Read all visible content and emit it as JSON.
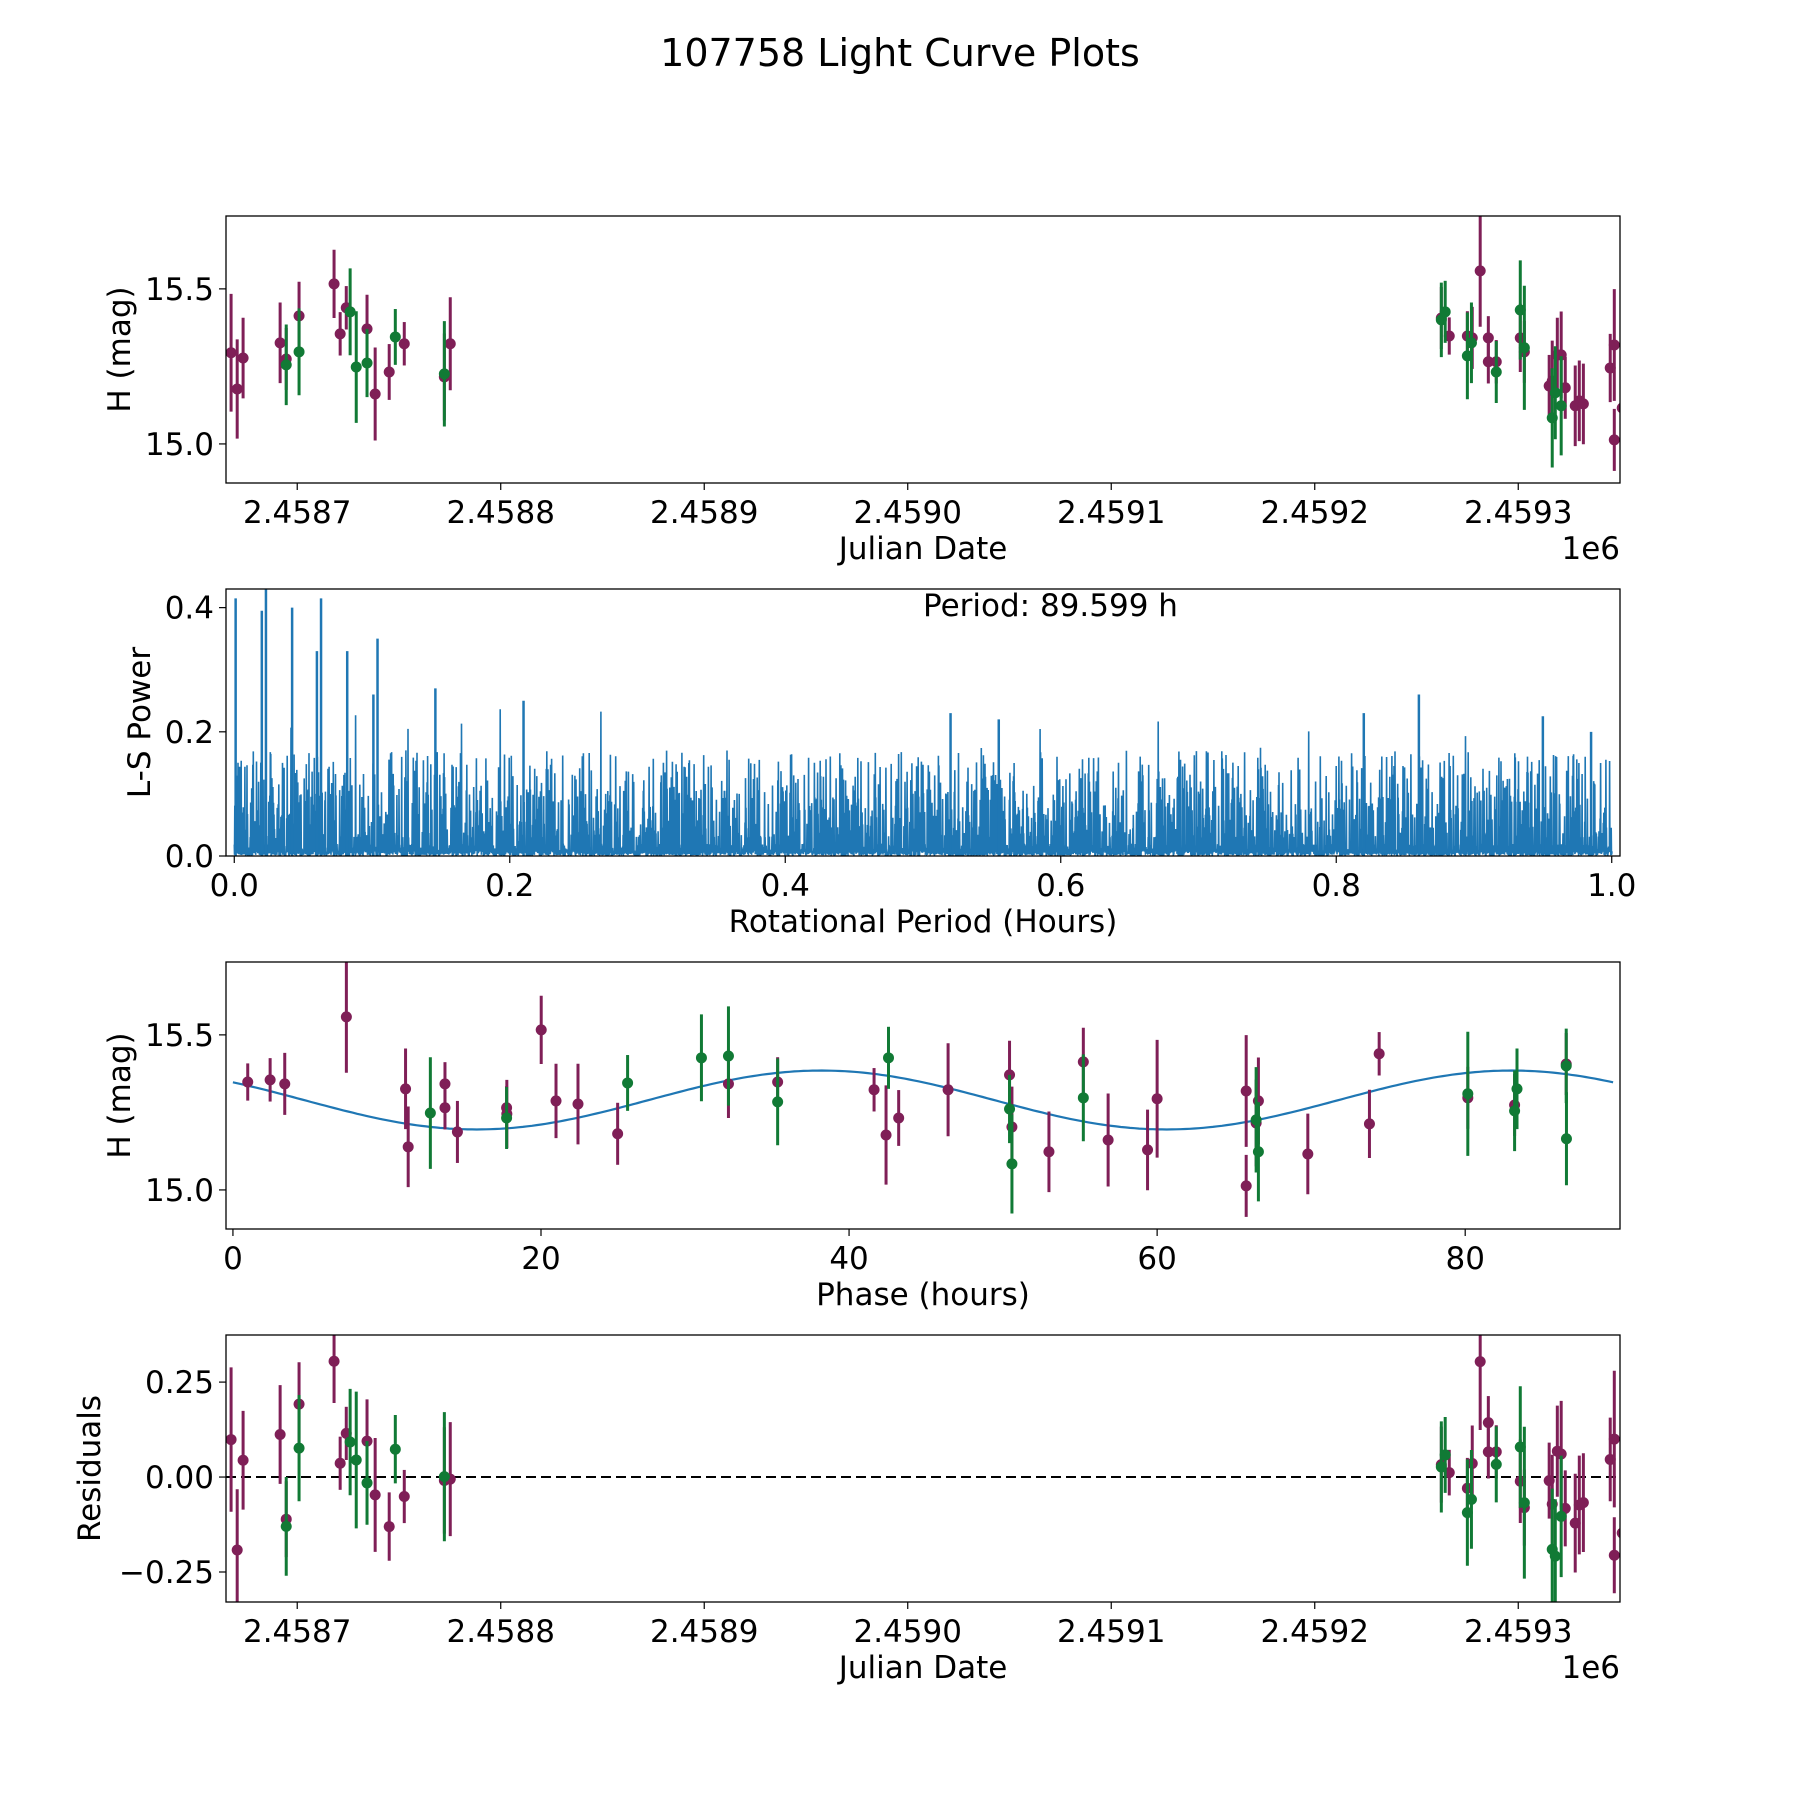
{
  "title": "107758 Light Curve Plots",
  "colors": {
    "filter_a": "#7f1f57",
    "filter_b": "#117a35",
    "model": "#1f77b4",
    "periodogram": "#1f77b4",
    "zero_line": "#000000"
  },
  "chart_data": [
    {
      "id": "lightcurve",
      "type": "scatter",
      "title": "",
      "xlabel": "Julian Date",
      "ylabel": "H (mag)",
      "x_offset_label": "1e6",
      "xlim": [
        2458665,
        2459350
      ],
      "ylim": [
        14.874,
        15.735
      ],
      "xticks": [
        2458700,
        2458800,
        2458900,
        2459000,
        2459100,
        2459200,
        2459300
      ],
      "xtick_labels": [
        "2.4587",
        "2.4588",
        "2.4589",
        "2.4590",
        "2.4591",
        "2.4592",
        "2.4593"
      ],
      "yticks": [
        15.0,
        15.5
      ],
      "ytick_labels": [
        "15.0",
        "15.5"
      ],
      "grid": false,
      "series": [
        {
          "name": "filter_a",
          "points": [
            [
              2458667.5,
              15.294,
              0.19
            ],
            [
              2458670.5,
              15.177,
              0.16
            ],
            [
              2458673.4,
              15.277,
              0.13
            ],
            [
              2458691.6,
              15.326,
              0.13
            ],
            [
              2458694.6,
              15.274,
              0.1
            ],
            [
              2458700.9,
              15.413,
              0.11
            ],
            [
              2458718.1,
              15.516,
              0.11
            ],
            [
              2458721.1,
              15.355,
              0.07
            ],
            [
              2458724.1,
              15.439,
              0.07
            ],
            [
              2458734.3,
              15.371,
              0.11
            ],
            [
              2458738.3,
              15.161,
              0.15
            ],
            [
              2458745.2,
              15.232,
              0.09
            ],
            [
              2458752.6,
              15.323,
              0.07
            ],
            [
              2458772.3,
              15.216,
              0.14
            ],
            [
              2458775.2,
              15.323,
              0.15
            ],
            [
              2459262.2,
              15.406,
              0.1
            ],
            [
              2459266.1,
              15.348,
              0.06
            ],
            [
              2459275.0,
              15.348,
              0.08
            ],
            [
              2459277.4,
              15.342,
              0.1
            ],
            [
              2459281.3,
              15.558,
              0.18
            ],
            [
              2459285.3,
              15.342,
              0.07
            ],
            [
              2459285.3,
              15.265,
              0.07
            ],
            [
              2459289.2,
              15.265,
              0.07
            ],
            [
              2459301.0,
              15.342,
              0.11
            ],
            [
              2459303.0,
              15.297,
              0.1
            ],
            [
              2459315.2,
              15.187,
              0.1
            ],
            [
              2459316.7,
              15.203,
              0.13
            ],
            [
              2459319.2,
              15.287,
              0.12
            ],
            [
              2459321.1,
              15.287,
              0.14
            ],
            [
              2459323.1,
              15.181,
              0.1
            ],
            [
              2459328.0,
              15.123,
              0.13
            ],
            [
              2459330.0,
              15.139,
              0.13
            ],
            [
              2459332.0,
              15.129,
              0.13
            ],
            [
              2459345.2,
              15.245,
              0.11
            ],
            [
              2459347.2,
              15.319,
              0.18
            ],
            [
              2459347.2,
              15.013,
              0.1
            ],
            [
              2459351.1,
              15.116,
              0.13
            ],
            [
              2459355.0,
              15.213,
              0.11
            ]
          ]
        },
        {
          "name": "filter_b",
          "points": [
            [
              2458694.6,
              15.255,
              0.13
            ],
            [
              2458700.9,
              15.297,
              0.14
            ],
            [
              2458726.0,
              15.426,
              0.14
            ],
            [
              2458729.0,
              15.248,
              0.18
            ],
            [
              2458734.3,
              15.261,
              0.11
            ],
            [
              2458748.2,
              15.345,
              0.09
            ],
            [
              2458772.3,
              15.226,
              0.17
            ],
            [
              2459262.2,
              15.4,
              0.12
            ],
            [
              2459264.1,
              15.426,
              0.1
            ],
            [
              2459275.0,
              15.284,
              0.14
            ],
            [
              2459277.0,
              15.326,
              0.13
            ],
            [
              2459289.2,
              15.232,
              0.1
            ],
            [
              2459301.0,
              15.432,
              0.16
            ],
            [
              2459303.0,
              15.31,
              0.2
            ],
            [
              2459316.7,
              15.084,
              0.16
            ],
            [
              2459318.2,
              15.165,
              0.15
            ],
            [
              2459321.1,
              15.123,
              0.16
            ]
          ]
        }
      ]
    },
    {
      "id": "periodogram",
      "type": "line",
      "xlabel": "Rotational Period (Hours)",
      "ylabel": "L-S Power",
      "xlim": [
        -0.006,
        1.006
      ],
      "ylim": [
        0.0,
        0.43
      ],
      "xticks": [
        0.0,
        0.2,
        0.4,
        0.6,
        0.8,
        1.0
      ],
      "xtick_labels": [
        "0.0",
        "0.2",
        "0.4",
        "0.6",
        "0.8",
        "1.0"
      ],
      "yticks": [
        0.0,
        0.2,
        0.4
      ],
      "ytick_labels": [
        "0.0",
        "0.2",
        "0.4"
      ],
      "annotation": "Period: 89.599 h",
      "noise_baseline_max": 0.14,
      "peaks": [
        [
          0.001,
          0.415
        ],
        [
          0.023,
          0.43
        ],
        [
          0.02,
          0.395
        ],
        [
          0.042,
          0.4
        ],
        [
          0.063,
          0.415
        ],
        [
          0.06,
          0.33
        ],
        [
          0.082,
          0.33
        ],
        [
          0.104,
          0.35
        ],
        [
          0.101,
          0.26
        ],
        [
          0.146,
          0.27
        ],
        [
          0.21,
          0.25
        ],
        [
          0.52,
          0.23
        ],
        [
          0.555,
          0.22
        ],
        [
          0.82,
          0.23
        ],
        [
          0.86,
          0.26
        ],
        [
          0.95,
          0.225
        ],
        [
          0.985,
          0.2
        ]
      ],
      "grid": false
    },
    {
      "id": "phased",
      "type": "scatter",
      "xlabel": "Phase (hours)",
      "ylabel": "H (mag)",
      "xlim": [
        -0.45,
        90.05
      ],
      "ylim": [
        14.874,
        15.735
      ],
      "xticks": [
        0,
        20,
        40,
        60,
        80
      ],
      "xtick_labels": [
        "0",
        "20",
        "40",
        "60",
        "80"
      ],
      "yticks": [
        15.0,
        15.5
      ],
      "ytick_labels": [
        "15.0",
        "15.5"
      ],
      "period_hours": 89.599,
      "model": {
        "mean": 15.29,
        "amplitude": 0.095,
        "peak_phase": 38.2,
        "cycle_hours": 44.8
      },
      "grid": false
    },
    {
      "id": "residuals",
      "type": "scatter",
      "xlabel": "Julian Date",
      "ylabel": "Residuals",
      "x_offset_label": "1e6",
      "xlim": [
        2458665,
        2459350
      ],
      "ylim": [
        -0.329,
        0.374
      ],
      "xticks": [
        2458700,
        2458800,
        2458900,
        2459000,
        2459100,
        2459200,
        2459300
      ],
      "xtick_labels": [
        "2.4587",
        "2.4588",
        "2.4589",
        "2.4590",
        "2.4591",
        "2.4592",
        "2.4593"
      ],
      "yticks": [
        -0.25,
        0.0,
        0.25
      ],
      "ytick_labels": [
        "−0.25",
        "0.00",
        "0.25"
      ],
      "zero_line": 0.0,
      "grid": false
    }
  ]
}
